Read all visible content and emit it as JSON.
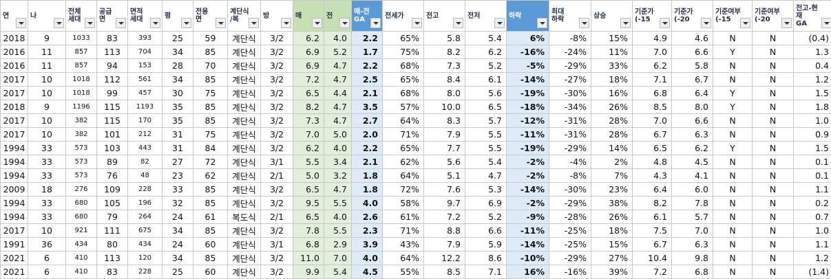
{
  "table": {
    "headers": [
      "연",
      "나",
      "전체\n세대",
      "공급\n면",
      "면적\n세대",
      "평",
      "전용\n면",
      "계단식\n/복",
      "방",
      "매",
      "전",
      "매-전\nGA",
      "전세가",
      "전고",
      "전저",
      "하락",
      "최대\n하락",
      "상승",
      "기준가\n(-15",
      "기준가\n(-20",
      "기준여부\n(-15",
      "기준여부\n(-20",
      "전고-현\n재\nGA"
    ],
    "rows": [
      [
        "2018",
        "9",
        "1033",
        "83",
        "393",
        "25",
        "59",
        "계단식",
        "3/2",
        "6.2",
        "4.0",
        "2.2",
        "65%",
        "5.8",
        "5.4",
        "6%",
        "-8%",
        "15%",
        "4.9",
        "4.6",
        "N",
        "N",
        "(0.4)"
      ],
      [
        "2016",
        "11",
        "857",
        "113",
        "704",
        "34",
        "85",
        "계단식",
        "3/2",
        "6.9",
        "5.2",
        "1.7",
        "75%",
        "8.2",
        "6.2",
        "-16%",
        "-24%",
        "11%",
        "7.0",
        "6.6",
        "Y",
        "N",
        "1.3"
      ],
      [
        "2016",
        "11",
        "857",
        "94",
        "153",
        "28",
        "70",
        "계단식",
        "3/2",
        "6.9",
        "4.7",
        "2.2",
        "68%",
        "7.3",
        "5.2",
        "-5%",
        "-29%",
        "33%",
        "6.2",
        "5.8",
        "N",
        "N",
        "0.4"
      ],
      [
        "2017",
        "10",
        "1018",
        "112",
        "561",
        "34",
        "85",
        "계단식",
        "3/2",
        "7.2",
        "4.7",
        "2.5",
        "65%",
        "8.4",
        "6.1",
        "-14%",
        "-27%",
        "18%",
        "7.1",
        "6.7",
        "N",
        "N",
        "1.2"
      ],
      [
        "2017",
        "10",
        "1018",
        "99",
        "457",
        "30",
        "75",
        "계단식",
        "3/2",
        "6.5",
        "4.4",
        "2.1",
        "68%",
        "8.0",
        "5.6",
        "-19%",
        "-30%",
        "16%",
        "6.8",
        "6.4",
        "Y",
        "N",
        "1.5"
      ],
      [
        "2018",
        "9",
        "1196",
        "115",
        "1193",
        "35",
        "85",
        "계단식",
        "3/2",
        "8.2",
        "4.7",
        "3.5",
        "57%",
        "10.0",
        "6.5",
        "-18%",
        "-34%",
        "26%",
        "8.5",
        "8.0",
        "Y",
        "N",
        "1.8"
      ],
      [
        "2017",
        "10",
        "382",
        "115",
        "170",
        "35",
        "85",
        "계단식",
        "3/2",
        "7.3",
        "4.7",
        "2.7",
        "64%",
        "8.3",
        "5.7",
        "-12%",
        "-31%",
        "28%",
        "7.0",
        "6.6",
        "N",
        "N",
        "1.0"
      ],
      [
        "2017",
        "10",
        "382",
        "101",
        "212",
        "31",
        "75",
        "계단식",
        "3/2",
        "7.0",
        "5.0",
        "2.0",
        "71%",
        "7.9",
        "5.5",
        "-11%",
        "-31%",
        "28%",
        "6.7",
        "6.3",
        "N",
        "N",
        "0.9"
      ],
      [
        "1994",
        "33",
        "573",
        "103",
        "443",
        "31",
        "84",
        "계단식",
        "3/2",
        "6.2",
        "4.0",
        "2.2",
        "65%",
        "7.7",
        "5.5",
        "-19%",
        "-29%",
        "14%",
        "6.5",
        "6.2",
        "Y",
        "N",
        "1.5"
      ],
      [
        "1994",
        "33",
        "573",
        "89",
        "82",
        "27",
        "72",
        "계단식",
        "3/1",
        "5.5",
        "3.4",
        "2.1",
        "62%",
        "5.6",
        "5.4",
        "-2%",
        "-4%",
        "2%",
        "4.8",
        "4.5",
        "N",
        "N",
        "0.1"
      ],
      [
        "1994",
        "33",
        "573",
        "76",
        "48",
        "23",
        "62",
        "계단식",
        "2/1",
        "5.0",
        "3.2",
        "1.8",
        "64%",
        "5.1",
        "4.7",
        "-2%",
        "-8%",
        "7%",
        "4.3",
        "4.1",
        "N",
        "N",
        "0.1"
      ],
      [
        "2009",
        "18",
        "276",
        "109",
        "228",
        "33",
        "85",
        "계단식",
        "3/2",
        "6.5",
        "4.7",
        "1.8",
        "72%",
        "7.6",
        "5.3",
        "-14%",
        "-30%",
        "23%",
        "6.4",
        "6.0",
        "N",
        "N",
        "1.1"
      ],
      [
        "1994",
        "33",
        "680",
        "105",
        "196",
        "32",
        "85",
        "계단식",
        "3/2",
        "9.5",
        "5.5",
        "4.0",
        "58%",
        "9.7",
        "6.9",
        "-2%",
        "-29%",
        "38%",
        "8.2",
        "7.8",
        "N",
        "N",
        "0.2"
      ],
      [
        "1994",
        "33",
        "680",
        "79",
        "264",
        "24",
        "61",
        "복도식",
        "2/1",
        "6.5",
        "4.0",
        "2.6",
        "61%",
        "7.2",
        "5.2",
        "-9%",
        "-28%",
        "26%",
        "6.1",
        "5.7",
        "N",
        "N",
        "0.7"
      ],
      [
        "2017",
        "10",
        "921",
        "111",
        "675",
        "34",
        "85",
        "계단식",
        "3/2",
        "7.8",
        "5.5",
        "2.3",
        "71%",
        "8.8",
        "6.6",
        "-11%",
        "-25%",
        "18%",
        "7.5",
        "7.0",
        "N",
        "N",
        "1.0"
      ],
      [
        "1991",
        "36",
        "434",
        "80",
        "434",
        "24",
        "60",
        "계단식",
        "3/1",
        "6.8",
        "2.9",
        "3.9",
        "43%",
        "7.9",
        "5.9",
        "-14%",
        "-25%",
        "15%",
        "6.7",
        "6.3",
        "N",
        "N",
        "1.1"
      ],
      [
        "2021",
        "6",
        "410",
        "113",
        "120",
        "34",
        "85",
        "계단식",
        "3/2",
        "11.0",
        "7.0",
        "4.0",
        "64%",
        "12.2",
        "8.6",
        "-10%",
        "-29%",
        "27%",
        "10.4",
        "9.8",
        "N",
        "N",
        "1.2"
      ],
      [
        "2021",
        "6",
        "410",
        "83",
        "228",
        "25",
        "60",
        "계단식",
        "3/2",
        "9.9",
        "5.4",
        "4.5",
        "55%",
        "8.5",
        "7.1",
        "16%",
        "-16%",
        "39%",
        "7.2",
        "6.8",
        "N",
        "N",
        "(1.4)"
      ]
    ]
  }
}
